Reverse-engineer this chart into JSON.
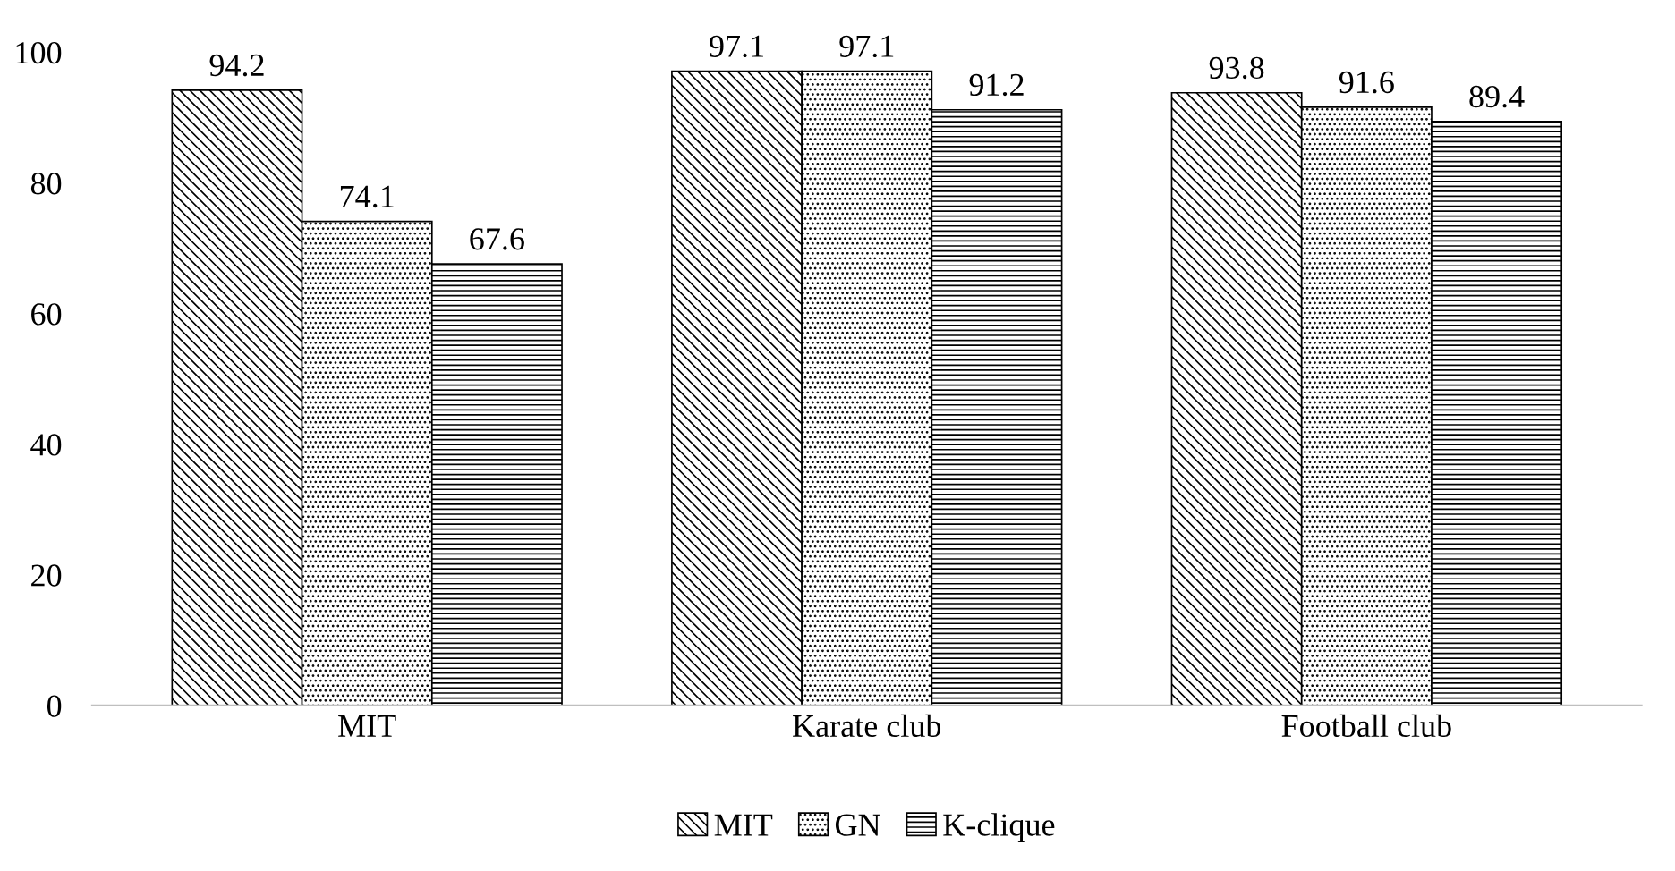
{
  "chart_data": {
    "type": "bar",
    "categories": [
      "MIT",
      "Karate club",
      "Football club"
    ],
    "series": [
      {
        "name": "MIT",
        "color": "#000000",
        "values": [
          94.2,
          97.1,
          93.8
        ]
      },
      {
        "name": "GN",
        "color": "#000000",
        "values": [
          74.1,
          97.1,
          91.6
        ]
      },
      {
        "name": "K-clique",
        "color": "#000000",
        "values": [
          67.6,
          91.2,
          89.4
        ]
      }
    ],
    "ylim": [
      0,
      100
    ],
    "yticks": [
      0,
      20,
      40,
      60,
      80,
      100
    ],
    "grid": false,
    "legend": "bottom",
    "data_labels": true
  }
}
